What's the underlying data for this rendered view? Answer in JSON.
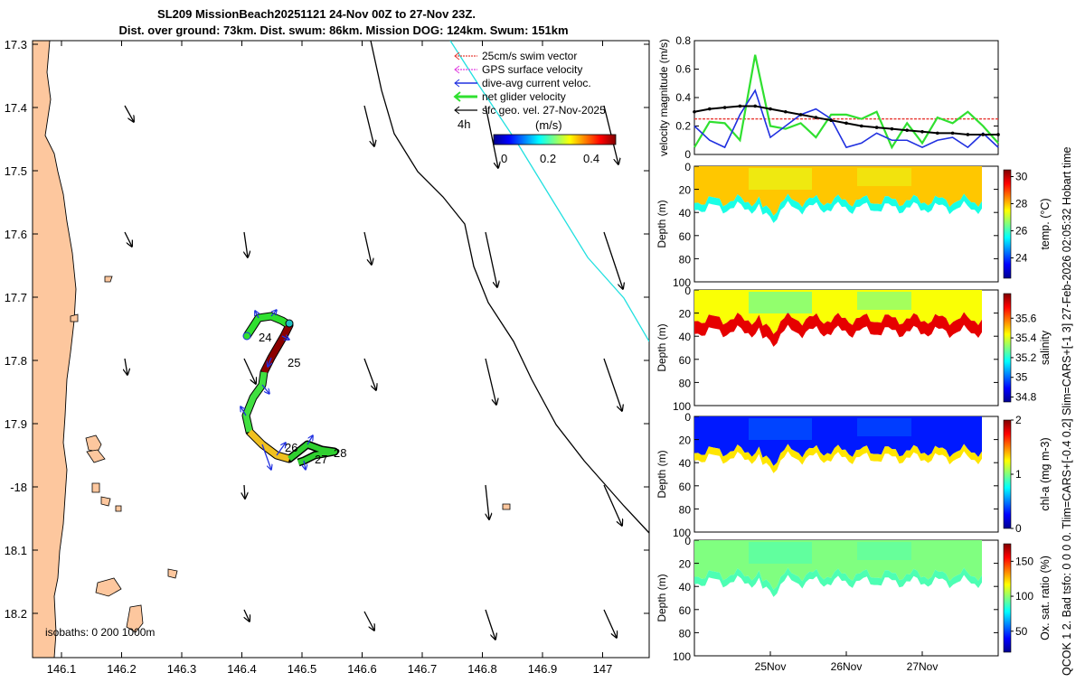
{
  "header": {
    "line1": "SL209 MissionBeach20251121 24-Nov 00Z to 27-Nov 23Z.",
    "line2": "Dist. over ground: 73km. Dist. swum: 86km. Mission DOG: 124km. Swum: 151km"
  },
  "side_label": "QCOK 1  2. Bad tsfo: 0  0  0  0. Tlim=CARS+[-0.4 0.2] Slim=CARS+[-1 3] 27-Feb-2026 02:05:32 Hobart time",
  "map": {
    "lat_ticks": [
      "17.3",
      "17.4",
      "17.5",
      "17.6",
      "17.7",
      "17.8",
      "17.9",
      "-18",
      "18.1",
      "18.2"
    ],
    "lon_ticks": [
      "146.1",
      "146.2",
      "146.3",
      "146.4",
      "146.5",
      "146.6",
      "146.7",
      "146.8",
      "146.9",
      "147"
    ],
    "legend": [
      {
        "label": "25cm/s swim vector",
        "color": "#e8403a"
      },
      {
        "label": "GPS surface velocity",
        "color": "#e040e0"
      },
      {
        "label": "dive-avg current veloc.",
        "color": "#2030e0"
      },
      {
        "label": "net glider velocity",
        "color": "#30e030"
      },
      {
        "label": "sfc geo. vel. 27-Nov-2025",
        "color": "#000000"
      }
    ],
    "scale_label": "4h",
    "colorbar_unit": "(m/s)",
    "colorbar_ticks": [
      "0",
      "0.2",
      "0.4"
    ],
    "day_labels": [
      "24",
      "25",
      "26",
      "27",
      "28"
    ],
    "isobaths_label": "isobaths: 0   200  1000m"
  },
  "chart_data": [
    {
      "type": "line",
      "title": "",
      "ylabel": "velocity magnitude (m/s)",
      "ylim": [
        0,
        0.8
      ],
      "yticks": [
        "0",
        "0.2",
        "0.4",
        "0.6",
        "0.8"
      ],
      "x": [
        24.0,
        24.2,
        24.4,
        24.6,
        24.8,
        25.0,
        25.2,
        25.4,
        25.6,
        25.8,
        26.0,
        26.2,
        26.4,
        26.6,
        26.8,
        27.0,
        27.2,
        27.4,
        27.6,
        27.8,
        28.0
      ],
      "series": [
        {
          "name": "25cm/s swim vector",
          "color": "#e8403a",
          "values": [
            0.25,
            0.25,
            0.25,
            0.25,
            0.25,
            0.25,
            0.25,
            0.25,
            0.25,
            0.25,
            0.25,
            0.25,
            0.25,
            0.25,
            0.25,
            0.25,
            0.25,
            0.25,
            0.25,
            0.25,
            0.25
          ]
        },
        {
          "name": "net glider velocity",
          "color": "#30e030",
          "values": [
            0.05,
            0.23,
            0.22,
            0.1,
            0.7,
            0.2,
            0.18,
            0.22,
            0.12,
            0.28,
            0.28,
            0.25,
            0.3,
            0.05,
            0.22,
            0.08,
            0.26,
            0.22,
            0.3,
            0.2,
            0.08
          ]
        },
        {
          "name": "dive-avg current veloc.",
          "color": "#2030e0",
          "values": [
            0.2,
            0.1,
            0.05,
            0.28,
            0.45,
            0.12,
            0.2,
            0.28,
            0.32,
            0.25,
            0.05,
            0.08,
            0.15,
            0.1,
            0.1,
            0.05,
            0.1,
            0.12,
            0.05,
            0.15,
            0.05
          ]
        },
        {
          "name": "sfc geo. vel.",
          "color": "#000000",
          "values": [
            0.3,
            0.32,
            0.33,
            0.34,
            0.34,
            0.32,
            0.3,
            0.28,
            0.26,
            0.24,
            0.22,
            0.2,
            0.19,
            0.18,
            0.17,
            0.16,
            0.15,
            0.15,
            0.14,
            0.14,
            0.14
          ]
        }
      ]
    },
    {
      "type": "heatmap",
      "ylabel": "Depth (m)",
      "yticks": [
        "0",
        "20",
        "40",
        "60",
        "80",
        "100"
      ],
      "colorbar_label": "temp. (°C)",
      "colorbar_ticks": [
        "24",
        "26",
        "28",
        "30"
      ],
      "crange": [
        22.5,
        30.5
      ]
    },
    {
      "type": "heatmap",
      "ylabel": "Depth (m)",
      "yticks": [
        "0",
        "20",
        "40",
        "60",
        "80",
        "100"
      ],
      "colorbar_label": "salinity",
      "colorbar_ticks": [
        "34.8",
        "35",
        "35.2",
        "35.4",
        "35.6"
      ],
      "crange": [
        34.75,
        35.85
      ]
    },
    {
      "type": "heatmap",
      "ylabel": "Depth (m)",
      "yticks": [
        "0",
        "20",
        "40",
        "60",
        "80",
        "100"
      ],
      "colorbar_label": "chl-a  (mg m-3)",
      "colorbar_ticks": [
        "0",
        "1",
        "2"
      ],
      "crange": [
        0,
        2
      ]
    },
    {
      "type": "heatmap",
      "ylabel": "Depth (m)",
      "yticks": [
        "0",
        "20",
        "40",
        "60",
        "80",
        "100"
      ],
      "colorbar_label": "Ox. sat. ratio (%)",
      "colorbar_ticks": [
        "50",
        "100",
        "150"
      ],
      "crange": [
        20,
        175
      ],
      "xticks": [
        "25Nov",
        "26Nov",
        "27Nov"
      ]
    }
  ]
}
